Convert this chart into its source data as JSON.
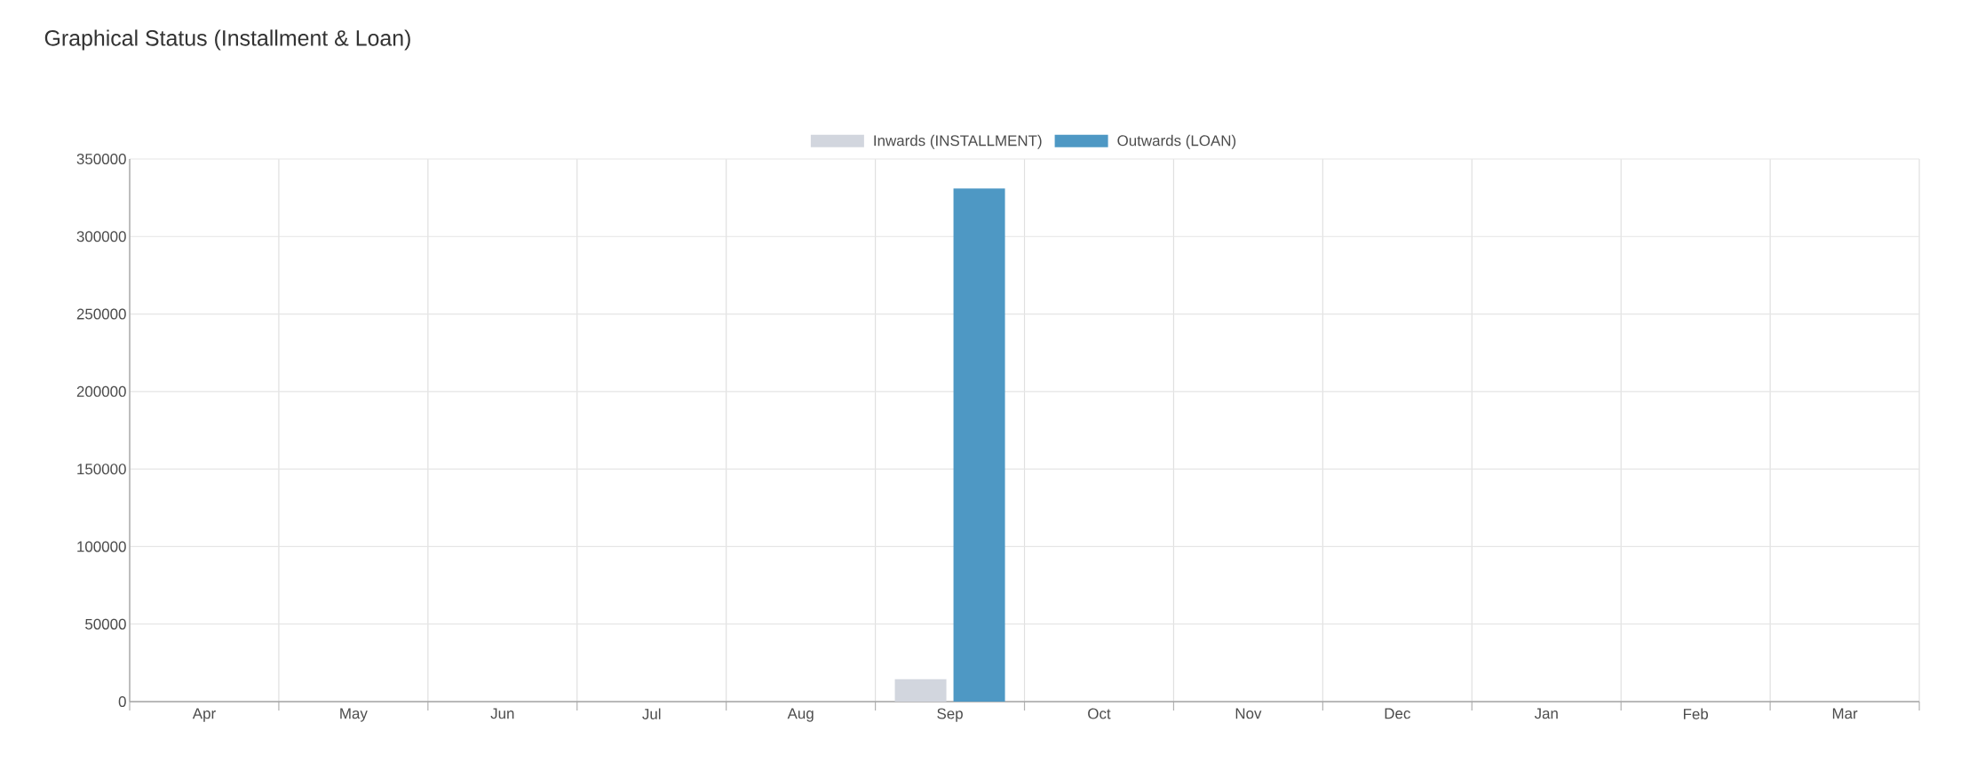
{
  "chart_data": {
    "type": "bar",
    "title": "Graphical Status (Installment & Loan)",
    "categories": [
      "Apr",
      "May",
      "Jun",
      "Jul",
      "Aug",
      "Sep",
      "Oct",
      "Nov",
      "Dec",
      "Jan",
      "Feb",
      "Mar"
    ],
    "series": [
      {
        "name": "Inwards (INSTALLMENT)",
        "color": "#d2d6de",
        "values": [
          0,
          0,
          0,
          0,
          0,
          14500,
          0,
          0,
          0,
          0,
          0,
          0
        ]
      },
      {
        "name": "Outwards (LOAN)",
        "color": "#4e98c4",
        "values": [
          0,
          0,
          0,
          0,
          0,
          331000,
          0,
          0,
          0,
          0,
          0,
          0
        ]
      }
    ],
    "ylim": [
      0,
      350000
    ],
    "yticks": [
      0,
      50000,
      100000,
      150000,
      200000,
      250000,
      300000,
      350000
    ],
    "grid": true,
    "legend": "top"
  }
}
